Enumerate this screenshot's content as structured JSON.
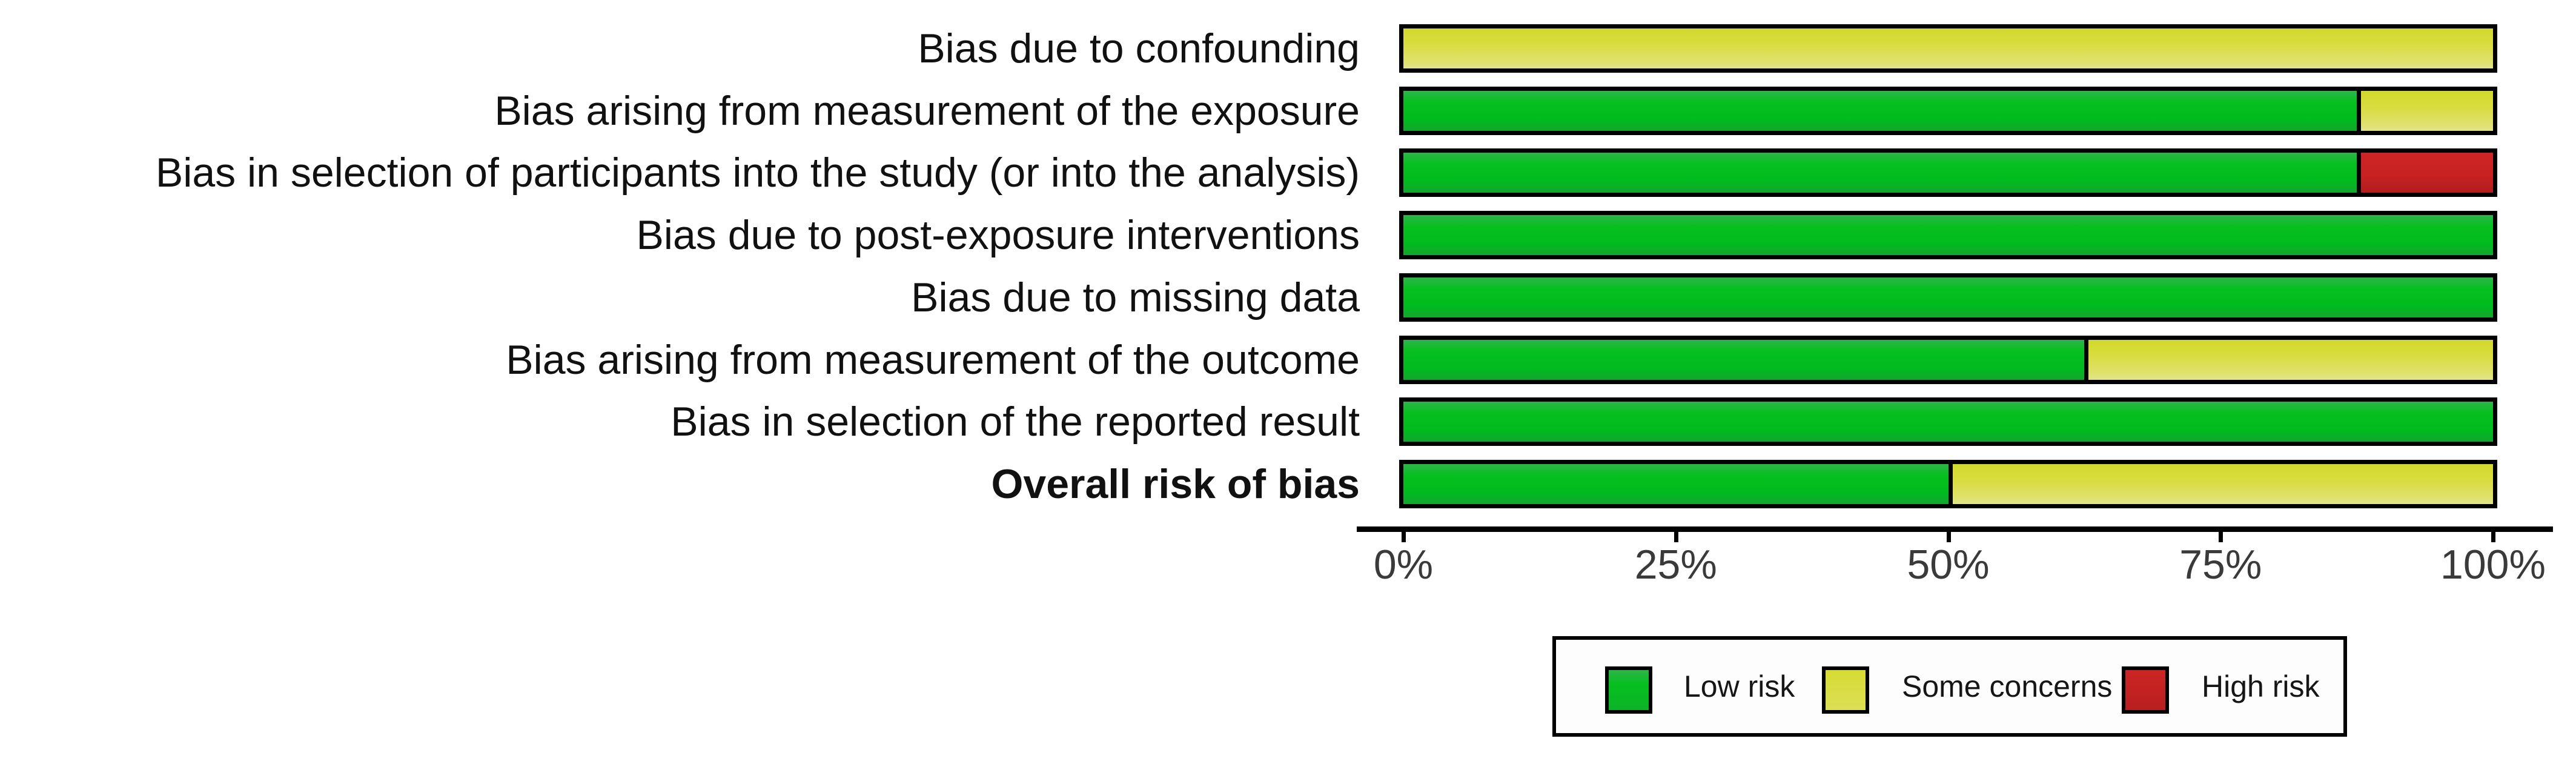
{
  "chart_data": {
    "type": "bar",
    "orientation": "horizontal",
    "stacked": true,
    "units": "percent",
    "title": "",
    "categories": [
      "Bias due to confounding",
      "Bias arising from measurement of the exposure",
      "Bias in selection of participants into the study (or into the analysis)",
      "Bias due to post-exposure interventions",
      "Bias due to missing data",
      "Bias arising from measurement of the outcome",
      "Bias in selection of the reported result",
      "Overall risk of bias"
    ],
    "bold_category_index": 7,
    "series": [
      {
        "name": "Low risk",
        "color": "#0abe23",
        "values": [
          0,
          87.5,
          87.5,
          100,
          100,
          62.5,
          100,
          50
        ]
      },
      {
        "name": "Some concerns",
        "color": "#dade3d",
        "values": [
          100,
          12.5,
          0,
          0,
          0,
          37.5,
          0,
          50
        ]
      },
      {
        "name": "High risk",
        "color": "#c92323",
        "values": [
          0,
          0,
          12.5,
          0,
          0,
          0,
          0,
          0
        ]
      }
    ],
    "xlim": [
      0,
      100
    ],
    "x_tick_values": [
      0,
      25,
      50,
      75,
      100
    ],
    "x_tick_labels": [
      "0%",
      "25%",
      "50%",
      "75%",
      "100%"
    ],
    "grid": false,
    "legend_position": "bottom-right",
    "legend_items": [
      {
        "label": "Low risk",
        "class": "low",
        "color": "#0abe23"
      },
      {
        "label": "Some concerns",
        "class": "some",
        "color": "#dade3d"
      },
      {
        "label": "High risk",
        "class": "high",
        "color": "#c92323"
      }
    ]
  },
  "colors": {
    "background": "#ffffff",
    "bar_border": "#000000",
    "axis": "#000000",
    "tick_label": "#3a3a3a",
    "category_label": "#111111"
  }
}
